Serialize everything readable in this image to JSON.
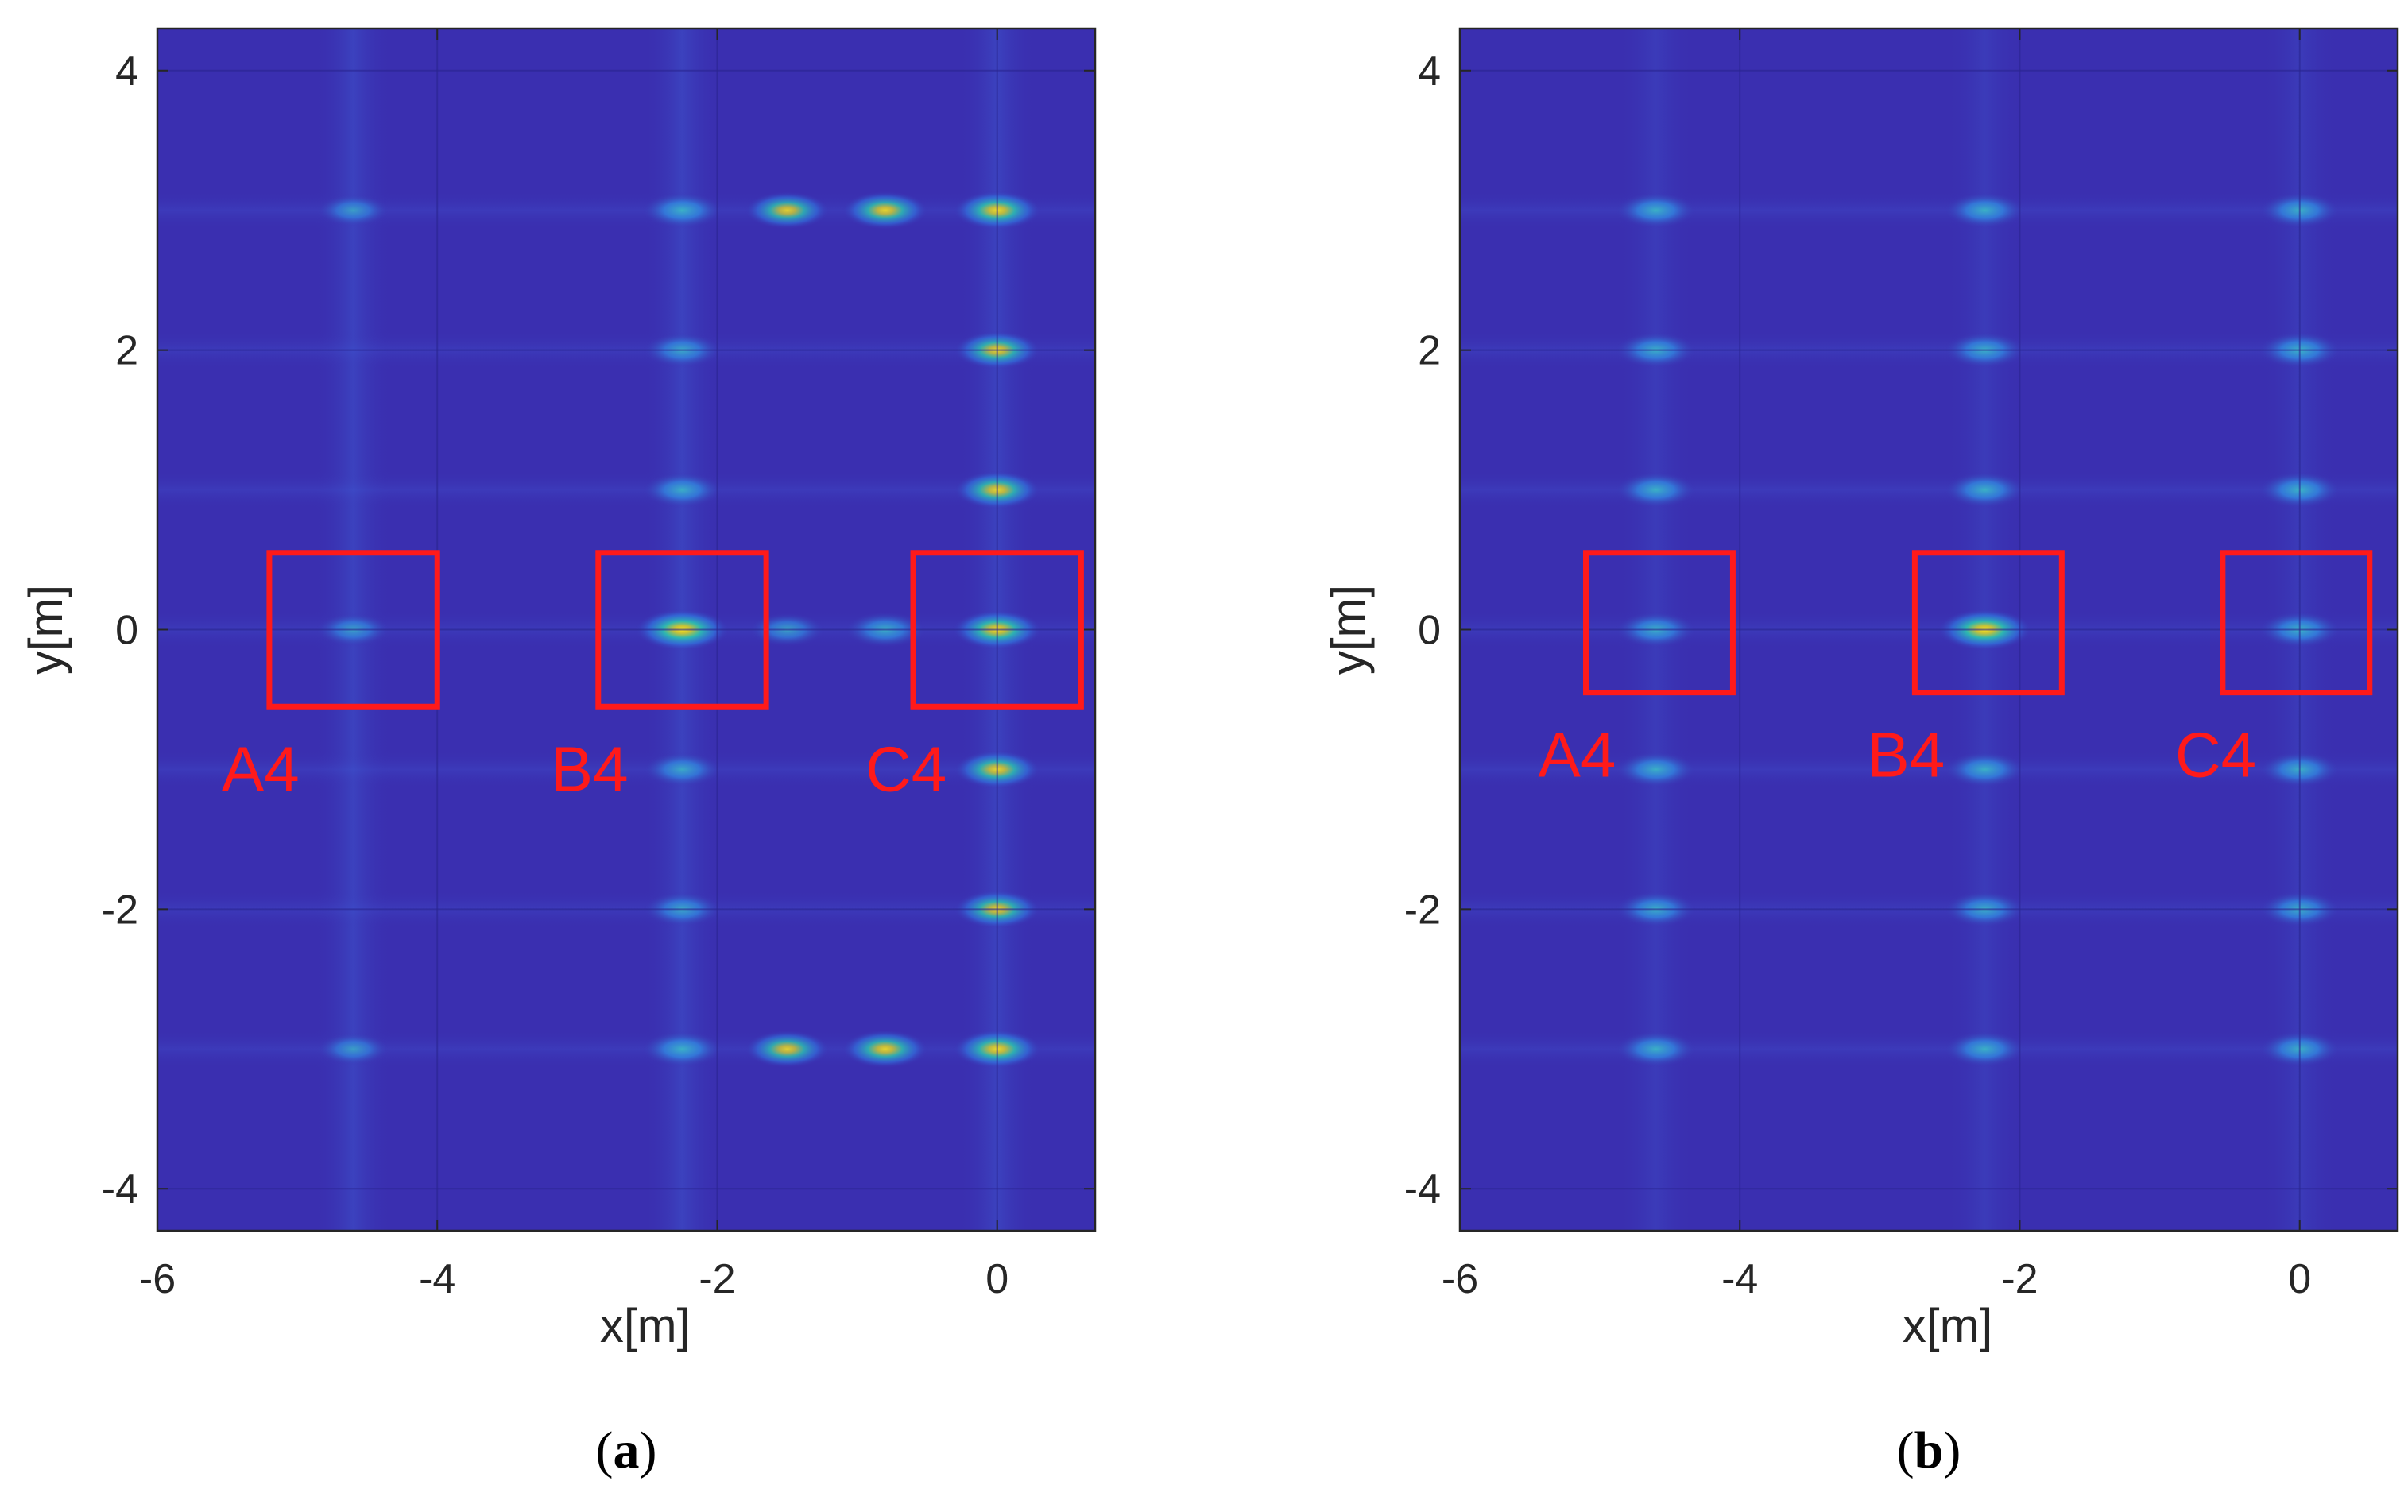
{
  "figure": {
    "panels": [
      {
        "caption_letter": "a"
      },
      {
        "caption_letter": "b"
      }
    ]
  },
  "chart_data": [
    {
      "type": "heatmap",
      "panel": "(a)",
      "xlabel": "x[m]",
      "ylabel": "y[m]",
      "xlim": [
        -6,
        0.7
      ],
      "ylim": [
        -4.3,
        4.3
      ],
      "xticks": [
        -6,
        -4,
        -2,
        0
      ],
      "yticks": [
        4,
        2,
        0,
        -2,
        -4
      ],
      "colormap": "parula",
      "background_color": "#3a2fb0",
      "grid": true,
      "target_rows_y": [
        3,
        2,
        1,
        0,
        -1,
        -2,
        -3
      ],
      "target_cols_x": [
        -4.6,
        -2.25,
        0
      ],
      "bright_spots": [
        {
          "x": -2.25,
          "y": 0,
          "intensity": 1.0
        },
        {
          "x": 0,
          "y": 0,
          "intensity": 0.85
        },
        {
          "x": -0.8,
          "y": 0,
          "intensity": 0.6
        },
        {
          "x": -1.5,
          "y": 0,
          "intensity": 0.45
        },
        {
          "x": 0,
          "y": 3,
          "intensity": 0.8
        },
        {
          "x": -0.8,
          "y": 3,
          "intensity": 0.75
        },
        {
          "x": -1.5,
          "y": 3,
          "intensity": 0.7
        },
        {
          "x": -2.25,
          "y": 3,
          "intensity": 0.6
        },
        {
          "x": 0,
          "y": 2,
          "intensity": 0.75
        },
        {
          "x": 0,
          "y": 1,
          "intensity": 0.75
        },
        {
          "x": 0,
          "y": -1,
          "intensity": 0.75
        },
        {
          "x": 0,
          "y": -2,
          "intensity": 0.75
        },
        {
          "x": 0,
          "y": -3,
          "intensity": 0.8
        },
        {
          "x": -0.8,
          "y": -3,
          "intensity": 0.75
        },
        {
          "x": -1.5,
          "y": -3,
          "intensity": 0.7
        },
        {
          "x": -2.25,
          "y": -3,
          "intensity": 0.6
        },
        {
          "x": -2.25,
          "y": 2,
          "intensity": 0.5
        },
        {
          "x": -2.25,
          "y": 1,
          "intensity": 0.55
        },
        {
          "x": -2.25,
          "y": -1,
          "intensity": 0.5
        },
        {
          "x": -2.25,
          "y": -2,
          "intensity": 0.5
        },
        {
          "x": -4.6,
          "y": 0,
          "intensity": 0.4
        },
        {
          "x": -4.6,
          "y": 3,
          "intensity": 0.35
        },
        {
          "x": -4.6,
          "y": -3,
          "intensity": 0.35
        }
      ],
      "boxes": [
        {
          "label": "A4",
          "x0": -5.2,
          "x1": -4.0,
          "y0": -0.55,
          "y1": 0.55
        },
        {
          "label": "B4",
          "x0": -2.85,
          "x1": -1.65,
          "y0": -0.55,
          "y1": 0.55
        },
        {
          "label": "C4",
          "x0": -0.6,
          "x1": 0.6,
          "y0": -0.55,
          "y1": 0.55
        }
      ]
    },
    {
      "type": "heatmap",
      "panel": "(b)",
      "xlabel": "x[m]",
      "ylabel": "y[m]",
      "xlim": [
        -6,
        0.7
      ],
      "ylim": [
        -4.3,
        4.3
      ],
      "xticks": [
        -6,
        -4,
        -2,
        0
      ],
      "yticks": [
        4,
        2,
        0,
        -2,
        -4
      ],
      "colormap": "parula",
      "background_color": "#3a2fb0",
      "grid": true,
      "target_rows_y": [
        3,
        2,
        1,
        0,
        -1,
        -2,
        -3
      ],
      "target_cols_x": [
        -4.6,
        -2.25,
        0
      ],
      "bright_spots": [
        {
          "x": -2.25,
          "y": 0,
          "intensity": 1.0
        },
        {
          "x": 0,
          "y": 0,
          "intensity": 0.65
        },
        {
          "x": -4.6,
          "y": 0,
          "intensity": 0.6
        },
        {
          "x": -4.6,
          "y": 3,
          "intensity": 0.6
        },
        {
          "x": -2.25,
          "y": 3,
          "intensity": 0.6
        },
        {
          "x": 0,
          "y": 3,
          "intensity": 0.6
        },
        {
          "x": -4.6,
          "y": 2,
          "intensity": 0.6
        },
        {
          "x": -2.25,
          "y": 2,
          "intensity": 0.6
        },
        {
          "x": 0,
          "y": 2,
          "intensity": 0.65
        },
        {
          "x": -4.6,
          "y": 1,
          "intensity": 0.6
        },
        {
          "x": -2.25,
          "y": 1,
          "intensity": 0.6
        },
        {
          "x": 0,
          "y": 1,
          "intensity": 0.65
        },
        {
          "x": -4.6,
          "y": -1,
          "intensity": 0.6
        },
        {
          "x": -2.25,
          "y": -1,
          "intensity": 0.6
        },
        {
          "x": 0,
          "y": -1,
          "intensity": 0.6
        },
        {
          "x": -4.6,
          "y": -2,
          "intensity": 0.6
        },
        {
          "x": -2.25,
          "y": -2,
          "intensity": 0.6
        },
        {
          "x": 0,
          "y": -2,
          "intensity": 0.6
        },
        {
          "x": -4.6,
          "y": -3,
          "intensity": 0.6
        },
        {
          "x": -2.25,
          "y": -3,
          "intensity": 0.6
        },
        {
          "x": 0,
          "y": -3,
          "intensity": 0.6
        }
      ],
      "boxes": [
        {
          "label": "A4",
          "x0": -5.1,
          "x1": -4.05,
          "y0": -0.45,
          "y1": 0.55
        },
        {
          "label": "B4",
          "x0": -2.75,
          "x1": -1.7,
          "y0": -0.45,
          "y1": 0.55
        },
        {
          "label": "C4",
          "x0": -0.55,
          "x1": 0.5,
          "y0": -0.45,
          "y1": 0.55
        }
      ]
    }
  ]
}
